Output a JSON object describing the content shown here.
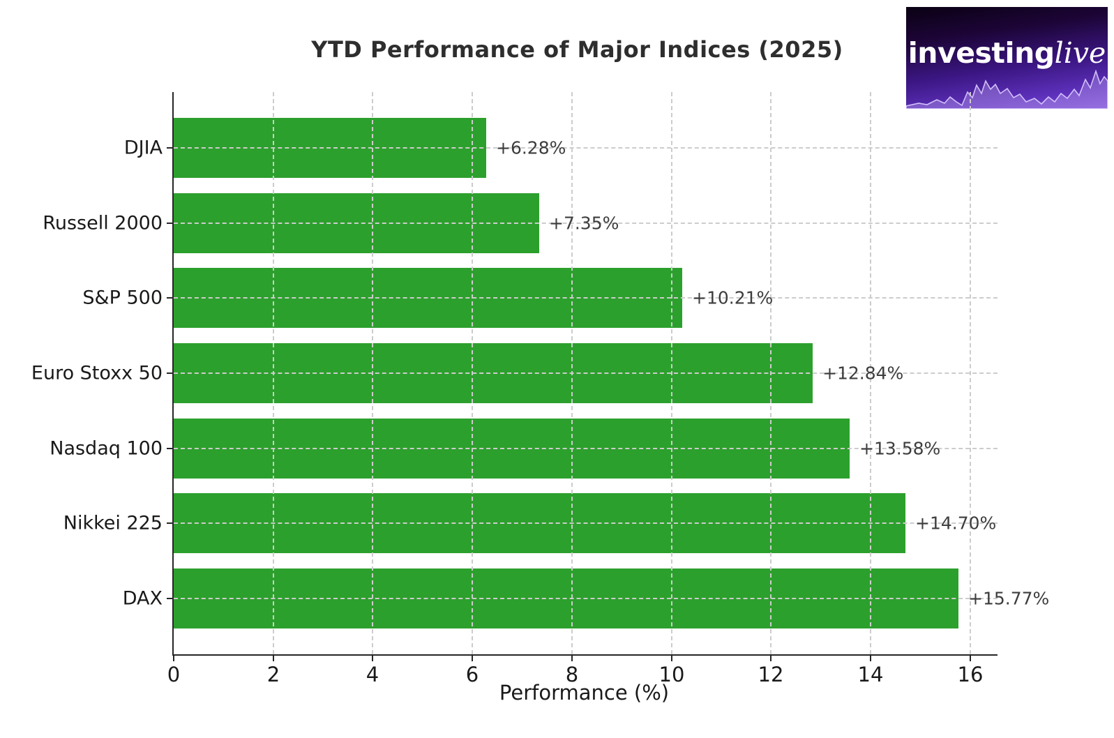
{
  "logo": {
    "brand_bold": "investing",
    "brand_italic": "live"
  },
  "chart_data": {
    "type": "bar",
    "orientation": "horizontal",
    "title": "YTD Performance of Major Indices (2025)",
    "xlabel": "Performance (%)",
    "categories": [
      "DJIA",
      "Russell 2000",
      "S&P 500",
      "Euro Stoxx 50",
      "Nasdaq 100",
      "Nikkei 225",
      "DAX"
    ],
    "values": [
      6.28,
      7.35,
      10.21,
      12.84,
      13.58,
      14.7,
      15.77
    ],
    "bar_labels": [
      "+6.28%",
      "+7.35%",
      "+10.21%",
      "+12.84%",
      "+13.58%",
      "+14.70%",
      "+15.77%"
    ],
    "xticks": [
      0,
      2,
      4,
      6,
      8,
      10,
      12,
      14,
      16
    ],
    "xlim": [
      0,
      16.55
    ],
    "grid": true,
    "grid_style": "dashed",
    "legend_position": "none",
    "bar_color": "#2ca02c",
    "grid_color": "#cccccc",
    "axis_color": "#262626",
    "tick_text_color": "#191919",
    "value_label_color": "#3d3d3d",
    "title_color": "#2e2e2e"
  }
}
